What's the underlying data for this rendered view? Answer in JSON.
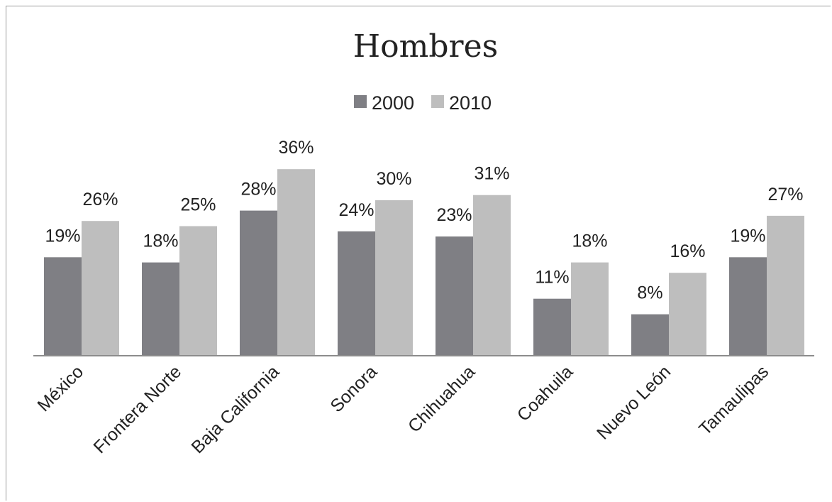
{
  "chart_data": {
    "type": "bar",
    "title": "Hombres",
    "categories": [
      "México",
      "Frontera Norte",
      "Baja California",
      "Sonora",
      "Chihuahua",
      "Coahuila",
      "Nuevo León",
      "Tamaulipas"
    ],
    "series": [
      {
        "name": "2000",
        "color": "#7f7f84",
        "values": [
          19,
          18,
          28,
          24,
          23,
          11,
          8,
          19
        ]
      },
      {
        "name": "2010",
        "color": "#bebebe",
        "values": [
          26,
          25,
          36,
          30,
          31,
          18,
          16,
          27
        ]
      }
    ],
    "value_suffix": "%",
    "ylim": [
      0,
      40
    ],
    "grid": false,
    "legend_position": "top-center",
    "axis_line_color": "#8c8c8c"
  }
}
